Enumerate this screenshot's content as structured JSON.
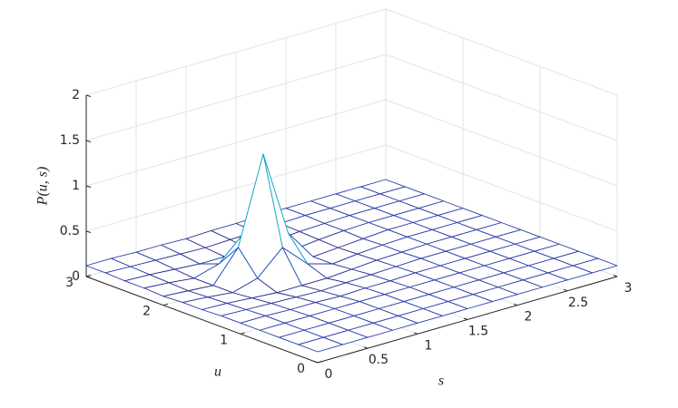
{
  "chart_data": {
    "type": "surface",
    "xlabel": "s",
    "ylabel": "u",
    "zlabel": "P(u, s)",
    "x": [
      0,
      0.25,
      0.5,
      0.75,
      1,
      1.25,
      1.5,
      1.75,
      2,
      2.25,
      2.5,
      2.75,
      3
    ],
    "y": [
      0,
      0.25,
      0.5,
      0.75,
      1,
      1.25,
      1.5,
      1.75,
      2,
      2.25,
      2.5,
      2.75,
      3
    ],
    "z": [
      [
        0.12,
        0.12,
        0.12,
        0.12,
        0.12,
        0.12,
        0.12,
        0.12,
        0.12,
        0.12,
        0.12,
        0.12,
        0.12
      ],
      [
        0.12,
        0.12,
        0.12,
        0.12,
        0.12,
        0.12,
        0.12,
        0.12,
        0.12,
        0.12,
        0.12,
        0.12,
        0.12
      ],
      [
        0.12,
        0.12,
        0.12,
        0.12,
        0.12,
        0.12,
        0.12,
        0.12,
        0.12,
        0.12,
        0.12,
        0.12,
        0.12
      ],
      [
        0.12,
        0.12,
        0.12,
        0.12,
        0.12,
        0.12,
        0.12,
        0.12,
        0.12,
        0.12,
        0.12,
        0.12,
        0.12
      ],
      [
        0.12,
        0.12,
        0.11,
        0.11,
        0.1,
        0.11,
        0.11,
        0.12,
        0.12,
        0.12,
        0.12,
        0.12,
        0.12
      ],
      [
        0.12,
        0.11,
        0.1,
        0.09,
        0.08,
        0.09,
        0.1,
        0.11,
        0.12,
        0.12,
        0.12,
        0.12,
        0.12
      ],
      [
        0.11,
        0.1,
        0.08,
        0.06,
        0.06,
        0.06,
        0.08,
        0.1,
        0.11,
        0.12,
        0.12,
        0.12,
        0.12
      ],
      [
        0.11,
        0.09,
        0.06,
        0.14,
        0.4,
        0.14,
        0.06,
        0.09,
        0.11,
        0.12,
        0.12,
        0.12,
        0.12
      ],
      [
        0.1,
        0.08,
        0.06,
        0.4,
        1.35,
        0.4,
        0.06,
        0.08,
        0.1,
        0.12,
        0.12,
        0.12,
        0.12
      ],
      [
        0.11,
        0.09,
        0.06,
        0.14,
        0.4,
        0.14,
        0.06,
        0.09,
        0.11,
        0.12,
        0.12,
        0.12,
        0.12
      ],
      [
        0.11,
        0.1,
        0.08,
        0.06,
        0.06,
        0.06,
        0.08,
        0.1,
        0.11,
        0.12,
        0.12,
        0.12,
        0.12
      ],
      [
        0.12,
        0.11,
        0.1,
        0.09,
        0.08,
        0.09,
        0.1,
        0.11,
        0.12,
        0.12,
        0.12,
        0.12,
        0.12
      ],
      [
        0.12,
        0.12,
        0.11,
        0.11,
        0.1,
        0.11,
        0.11,
        0.12,
        0.12,
        0.12,
        0.12,
        0.12,
        0.12
      ]
    ],
    "xlim": [
      0,
      3
    ],
    "xticks": [
      0,
      0.5,
      1,
      1.5,
      2,
      2.5,
      3
    ],
    "ylim": [
      0,
      3
    ],
    "yticks": [
      0,
      1,
      2,
      3
    ],
    "zlim": [
      0,
      2
    ],
    "zticks": [
      0,
      0.5,
      1,
      1.5,
      2
    ],
    "grid": true,
    "colormap": [
      "#352a87",
      "#0f5cdd",
      "#1481d6",
      "#06a4ca",
      "#2eb7a4",
      "#87bf77",
      "#d1bb59",
      "#fec832",
      "#f9fb0e"
    ]
  }
}
